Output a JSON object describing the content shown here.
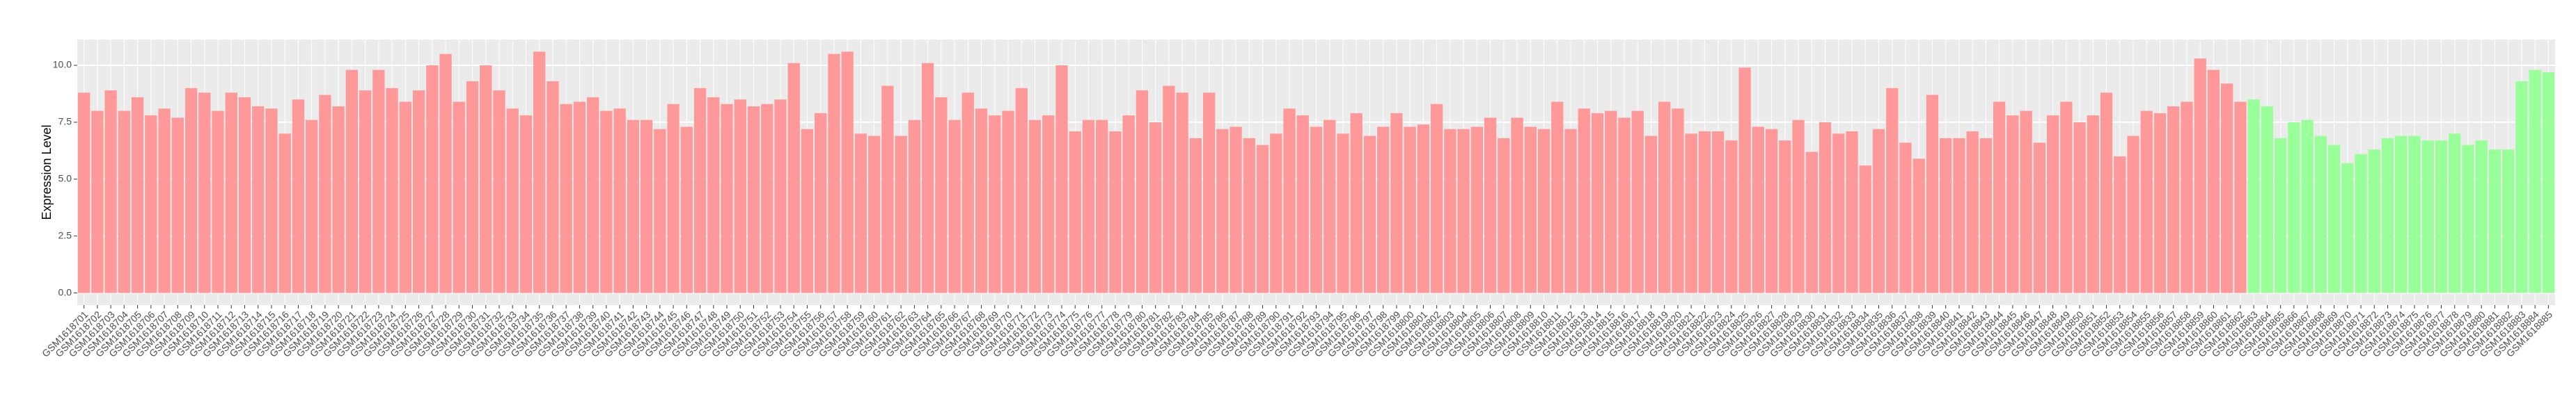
{
  "chart_data": {
    "type": "bar",
    "y_label": "Expression Level",
    "ylim": [
      -0.53,
      11.13
    ],
    "yticks": [
      {
        "value": 0,
        "label": "0.0"
      },
      2.5,
      {
        "value": 5,
        "label": "5.0"
      },
      7.5,
      {
        "value": 10,
        "label": "10.0"
      }
    ],
    "grid": true,
    "colors": [
      "#ff9999",
      "#99ff99"
    ],
    "categories": [
      "GSM1618701",
      "GSM1618702",
      "GSM1618703",
      "GSM1618704",
      "GSM1618705",
      "GSM1618706",
      "GSM1618707",
      "GSM1618708",
      "GSM1618709",
      "GSM1618710",
      "GSM1618711",
      "GSM1618712",
      "GSM1618713",
      "GSM1618714",
      "GSM1618715",
      "GSM1618716",
      "GSM1618717",
      "GSM1618718",
      "GSM1618719",
      "GSM1618720",
      "GSM1618721",
      "GSM1618722",
      "GSM1618723",
      "GSM1618724",
      "GSM1618725",
      "GSM1618726",
      "GSM1618727",
      "GSM1618728",
      "GSM1618729",
      "GSM1618730",
      "GSM1618731",
      "GSM1618732",
      "GSM1618733",
      "GSM1618734",
      "GSM1618735",
      "GSM1618736",
      "GSM1618737",
      "GSM1618738",
      "GSM1618739",
      "GSM1618740",
      "GSM1618741",
      "GSM1618742",
      "GSM1618743",
      "GSM1618744",
      "GSM1618745",
      "GSM1618746",
      "GSM1618747",
      "GSM1618748",
      "GSM1618749",
      "GSM1618750",
      "GSM1618751",
      "GSM1618752",
      "GSM1618753",
      "GSM1618754",
      "GSM1618755",
      "GSM1618756",
      "GSM1618757",
      "GSM1618758",
      "GSM1618759",
      "GSM1618760",
      "GSM1618761",
      "GSM1618762",
      "GSM1618763",
      "GSM1618764",
      "GSM1618765",
      "GSM1618766",
      "GSM1618767",
      "GSM1618768",
      "GSM1618769",
      "GSM1618770",
      "GSM1618771",
      "GSM1618772",
      "GSM1618773",
      "GSM1618774",
      "GSM1618775",
      "GSM1618776",
      "GSM1618777",
      "GSM1618778",
      "GSM1618779",
      "GSM1618780",
      "GSM1618781",
      "GSM1618782",
      "GSM1618783",
      "GSM1618784",
      "GSM1618785",
      "GSM1618786",
      "GSM1618787",
      "GSM1618788",
      "GSM1618789",
      "GSM1618790",
      "GSM1618791",
      "GSM1618792",
      "GSM1618793",
      "GSM1618794",
      "GSM1618795",
      "GSM1618796",
      "GSM1618797",
      "GSM1618798",
      "GSM1618799",
      "GSM1618800",
      "GSM1618801",
      "GSM1618802",
      "GSM1618803",
      "GSM1618804",
      "GSM1618805",
      "GSM1618806",
      "GSM1618807",
      "GSM1618808",
      "GSM1618809",
      "GSM1618810",
      "GSM1618811",
      "GSM1618812",
      "GSM1618813",
      "GSM1618814",
      "GSM1618815",
      "GSM1618816",
      "GSM1618817",
      "GSM1618818",
      "GSM1618819",
      "GSM1618820",
      "GSM1618821",
      "GSM1618822",
      "GSM1618823",
      "GSM1618824",
      "GSM1618825",
      "GSM1618826",
      "GSM1618827",
      "GSM1618828",
      "GSM1618829",
      "GSM1618830",
      "GSM1618831",
      "GSM1618832",
      "GSM1618833",
      "GSM1618834",
      "GSM1618835",
      "GSM1618836",
      "GSM1618837",
      "GSM1618838",
      "GSM1618839",
      "GSM1618840",
      "GSM1618841",
      "GSM1618842",
      "GSM1618843",
      "GSM1618844",
      "GSM1618845",
      "GSM1618846",
      "GSM1618847",
      "GSM1618848",
      "GSM1618849",
      "GSM1618850",
      "GSM1618851",
      "GSM1618852",
      "GSM1618853",
      "GSM1618854",
      "GSM1618855",
      "GSM1618856",
      "GSM1618857",
      "GSM1618858",
      "GSM1618859",
      "GSM1618860",
      "GSM1618861",
      "GSM1618862",
      "GSM1618863",
      "GSM1618864",
      "GSM1618865",
      "GSM1618866",
      "GSM1618867",
      "GSM1618868",
      "GSM1618869",
      "GSM1618870",
      "GSM1618871",
      "GSM1618872",
      "GSM1618873",
      "GSM1618874",
      "GSM1618875",
      "GSM1618876",
      "GSM1618877",
      "GSM1618878",
      "GSM1618879",
      "GSM1618880",
      "GSM1618881",
      "GSM1618882",
      "GSM1618883",
      "GSM1618884",
      "GSM1618885"
    ],
    "values": [
      8.8,
      8.0,
      8.9,
      8.0,
      8.6,
      7.8,
      8.1,
      7.7,
      9.0,
      8.8,
      8.0,
      8.8,
      8.6,
      8.2,
      8.1,
      7.0,
      8.5,
      7.6,
      8.7,
      8.2,
      9.8,
      8.9,
      9.8,
      9.0,
      8.4,
      8.9,
      10.0,
      10.5,
      8.4,
      9.3,
      10.0,
      8.9,
      8.1,
      7.8,
      10.6,
      9.3,
      8.3,
      8.4,
      8.6,
      8.0,
      8.1,
      7.6,
      7.6,
      7.2,
      8.3,
      7.3,
      9.0,
      8.6,
      8.3,
      8.5,
      8.2,
      8.3,
      8.5,
      10.1,
      7.2,
      7.9,
      10.5,
      10.6,
      7.0,
      6.9,
      9.1,
      6.9,
      7.6,
      10.1,
      8.6,
      7.6,
      8.8,
      8.1,
      7.8,
      8.0,
      9.0,
      7.6,
      7.8,
      10.0,
      7.1,
      7.6,
      7.6,
      7.1,
      7.8,
      8.9,
      7.5,
      9.1,
      8.8,
      6.8,
      8.8,
      7.2,
      7.3,
      6.8,
      6.5,
      7.0,
      8.1,
      7.8,
      7.3,
      7.6,
      7.0,
      7.9,
      6.9,
      7.3,
      7.9,
      7.3,
      7.4,
      8.3,
      7.2,
      7.2,
      7.3,
      7.7,
      6.8,
      7.7,
      7.3,
      7.2,
      8.4,
      7.2,
      8.1,
      7.9,
      8.0,
      7.7,
      8.0,
      6.9,
      8.4,
      8.1,
      7.0,
      7.1,
      7.1,
      6.7,
      9.9,
      7.3,
      7.2,
      6.7,
      7.6,
      6.2,
      7.5,
      7.0,
      7.1,
      5.6,
      7.2,
      9.0,
      6.6,
      5.9,
      8.7,
      6.8,
      6.8,
      7.1,
      6.8,
      8.4,
      7.8,
      8.0,
      6.6,
      7.8,
      8.4,
      7.5,
      7.8,
      8.8,
      6.0,
      6.9,
      8.0,
      7.9,
      8.2,
      8.4,
      10.3,
      9.8,
      9.2,
      8.4,
      8.5,
      8.2,
      6.8,
      7.5,
      7.6,
      6.9,
      6.5,
      5.7,
      6.1,
      6.3,
      6.8,
      6.9,
      6.9,
      6.7,
      6.7,
      7.0,
      6.5,
      6.7,
      6.3,
      6.3,
      9.3,
      9.8,
      9.7
    ],
    "color_groups": [
      0,
      0,
      0,
      0,
      0,
      0,
      0,
      0,
      0,
      0,
      0,
      0,
      0,
      0,
      0,
      0,
      0,
      0,
      0,
      0,
      0,
      0,
      0,
      0,
      0,
      0,
      0,
      0,
      0,
      0,
      0,
      0,
      0,
      0,
      0,
      0,
      0,
      0,
      0,
      0,
      0,
      0,
      0,
      0,
      0,
      0,
      0,
      0,
      0,
      0,
      0,
      0,
      0,
      0,
      0,
      0,
      0,
      0,
      0,
      0,
      0,
      0,
      0,
      0,
      0,
      0,
      0,
      0,
      0,
      0,
      0,
      0,
      0,
      0,
      0,
      0,
      0,
      0,
      0,
      0,
      0,
      0,
      0,
      0,
      0,
      0,
      0,
      0,
      0,
      0,
      0,
      0,
      0,
      0,
      0,
      0,
      0,
      0,
      0,
      0,
      0,
      0,
      0,
      0,
      0,
      0,
      0,
      0,
      0,
      0,
      0,
      0,
      0,
      0,
      0,
      0,
      0,
      0,
      0,
      0,
      0,
      0,
      0,
      0,
      0,
      0,
      0,
      0,
      0,
      0,
      0,
      0,
      0,
      0,
      0,
      0,
      0,
      0,
      0,
      0,
      0,
      0,
      0,
      0,
      0,
      0,
      0,
      0,
      0,
      0,
      0,
      0,
      0,
      0,
      0,
      0,
      0,
      0,
      0,
      0,
      0,
      0,
      1,
      1,
      1,
      1,
      1,
      1,
      1,
      1,
      1,
      1,
      1,
      1,
      1,
      1,
      1,
      1,
      1,
      1,
      1,
      1,
      1,
      1,
      1
    ]
  }
}
